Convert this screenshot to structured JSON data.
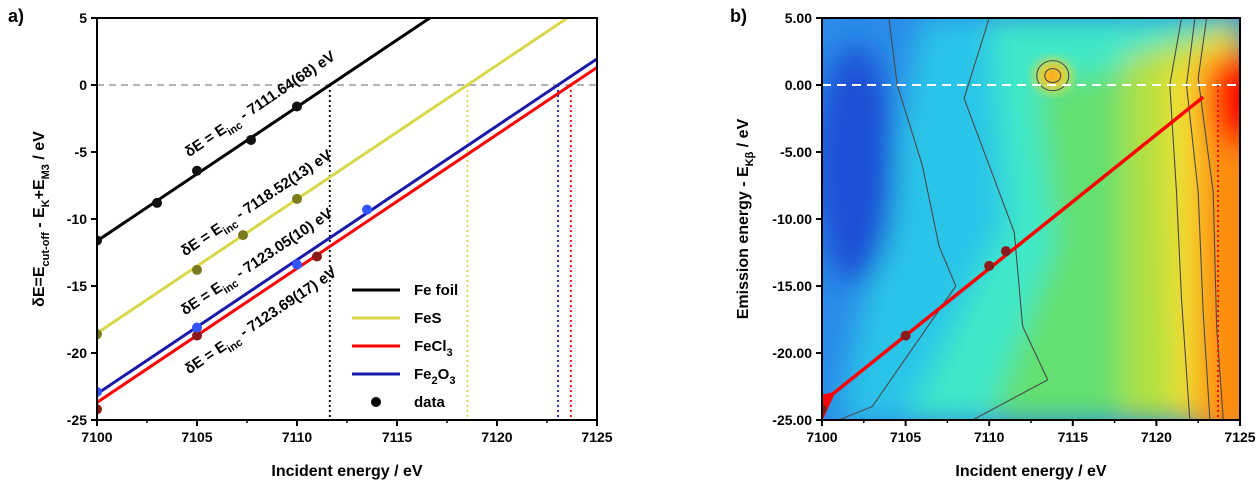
{
  "chart_data": [
    {
      "panel": "a)",
      "type": "line",
      "xlabel": "Incident energy / eV",
      "ylabel": "δE=E_cut-off - E_K+E_M3 / eV",
      "xlim": [
        7100,
        7125
      ],
      "ylim": [
        -25,
        5
      ],
      "x_ticks": [
        7100,
        7105,
        7110,
        7115,
        7120,
        7125
      ],
      "y_ticks": [
        5,
        0,
        -5,
        -10,
        -15,
        -20,
        -25
      ],
      "grid": false,
      "legend_position": "bottom-right",
      "zero_line": 0,
      "series": [
        {
          "name": "Fe foil",
          "color": "#000000",
          "point_color": "#111111",
          "intercept": 7111.64,
          "offset": "7111.64(68)",
          "points": [
            [
              7100,
              -11.6
            ],
            [
              7103,
              -8.8
            ],
            [
              7105,
              -6.4
            ],
            [
              7107.7,
              -4.1
            ],
            [
              7110,
              -1.6
            ]
          ]
        },
        {
          "name": "FeS",
          "color": "#d8d84a",
          "point_color": "#7a7a1e",
          "intercept": 7118.52,
          "offset": "7118.52(13)",
          "points": [
            [
              7100,
              -18.6
            ],
            [
              7105,
              -13.8
            ],
            [
              7107.3,
              -11.2
            ],
            [
              7110,
              -8.5
            ]
          ]
        },
        {
          "name": "FeCl3",
          "color": "#ff0000",
          "point_color": "#8b1a1a",
          "intercept": 7123.69,
          "offset": "7123.69(17)",
          "points": [
            [
              7100,
              -24.2
            ],
            [
              7105,
              -18.7
            ],
            [
              7111,
              -12.8
            ]
          ]
        },
        {
          "name": "Fe2O3",
          "color": "#1a1aaa",
          "point_color": "#3355ff",
          "intercept": 7123.05,
          "offset": "7123.05(10)",
          "points": [
            [
              7100,
              -22.9
            ],
            [
              7105,
              -18.1
            ],
            [
              7110,
              -13.4
            ],
            [
              7113.5,
              -9.3
            ]
          ]
        }
      ],
      "equations": [
        {
          "prefix": "δE = E",
          "sub": "inc",
          "suffix": " - 7111.64(68) eV"
        },
        {
          "prefix": "δE = E",
          "sub": "inc",
          "suffix": " - 7118.52(13) eV"
        },
        {
          "prefix": "δE = E",
          "sub": "inc",
          "suffix": " - 7123.05(10) eV"
        },
        {
          "prefix": "δE = E",
          "sub": "inc",
          "suffix": " - 7123.69(17) eV"
        }
      ],
      "legend": [
        {
          "label": "Fe foil",
          "base": "Fe foil",
          "sub": "",
          "tail": "",
          "color": "#000000",
          "kind": "line"
        },
        {
          "label": "FeS",
          "base": "FeS",
          "sub": "",
          "tail": "",
          "color": "#d8d84a",
          "kind": "line"
        },
        {
          "label": "FeCl3",
          "base": "FeCl",
          "sub": "3",
          "tail": "",
          "color": "#ff0000",
          "kind": "line"
        },
        {
          "label": "Fe2O3",
          "base": "Fe",
          "sub": "2",
          "tail": "O",
          "sub2": "3",
          "color": "#1a1aaa",
          "kind": "line"
        },
        {
          "label": "data",
          "base": "data",
          "sub": "",
          "tail": "",
          "color": "#000000",
          "kind": "dot"
        }
      ]
    },
    {
      "panel": "b)",
      "type": "heatmap",
      "xlabel": "Incident energy / eV",
      "ylabel": "Emission energy - E_Kβ / eV",
      "xlim": [
        7100,
        7125
      ],
      "ylim": [
        -25,
        5
      ],
      "x_ticks": [
        7100,
        7105,
        7110,
        7115,
        7120,
        7125
      ],
      "y_ticks": [
        "5.00",
        "0.00",
        "-5.00",
        "-10.00",
        "-15.00",
        "-20.00",
        "-25.00"
      ],
      "zero_line": 0,
      "vertical_line_x": 7123.69,
      "fit_line": {
        "color": "#ff0000",
        "from": [
          7100,
          -23.7
        ],
        "to": [
          7122.8,
          -0.9
        ]
      },
      "points": [
        [
          7100,
          -24.2
        ],
        [
          7105,
          -18.7
        ],
        [
          7110,
          -13.5
        ],
        [
          7111,
          -12.4
        ]
      ],
      "colorscale": [
        "#1a4fd6",
        "#2a8ce8",
        "#29c4e8",
        "#3fe8c8",
        "#64e070",
        "#b0e040",
        "#f2e030",
        "#ff8c10",
        "#ff0000"
      ]
    }
  ]
}
